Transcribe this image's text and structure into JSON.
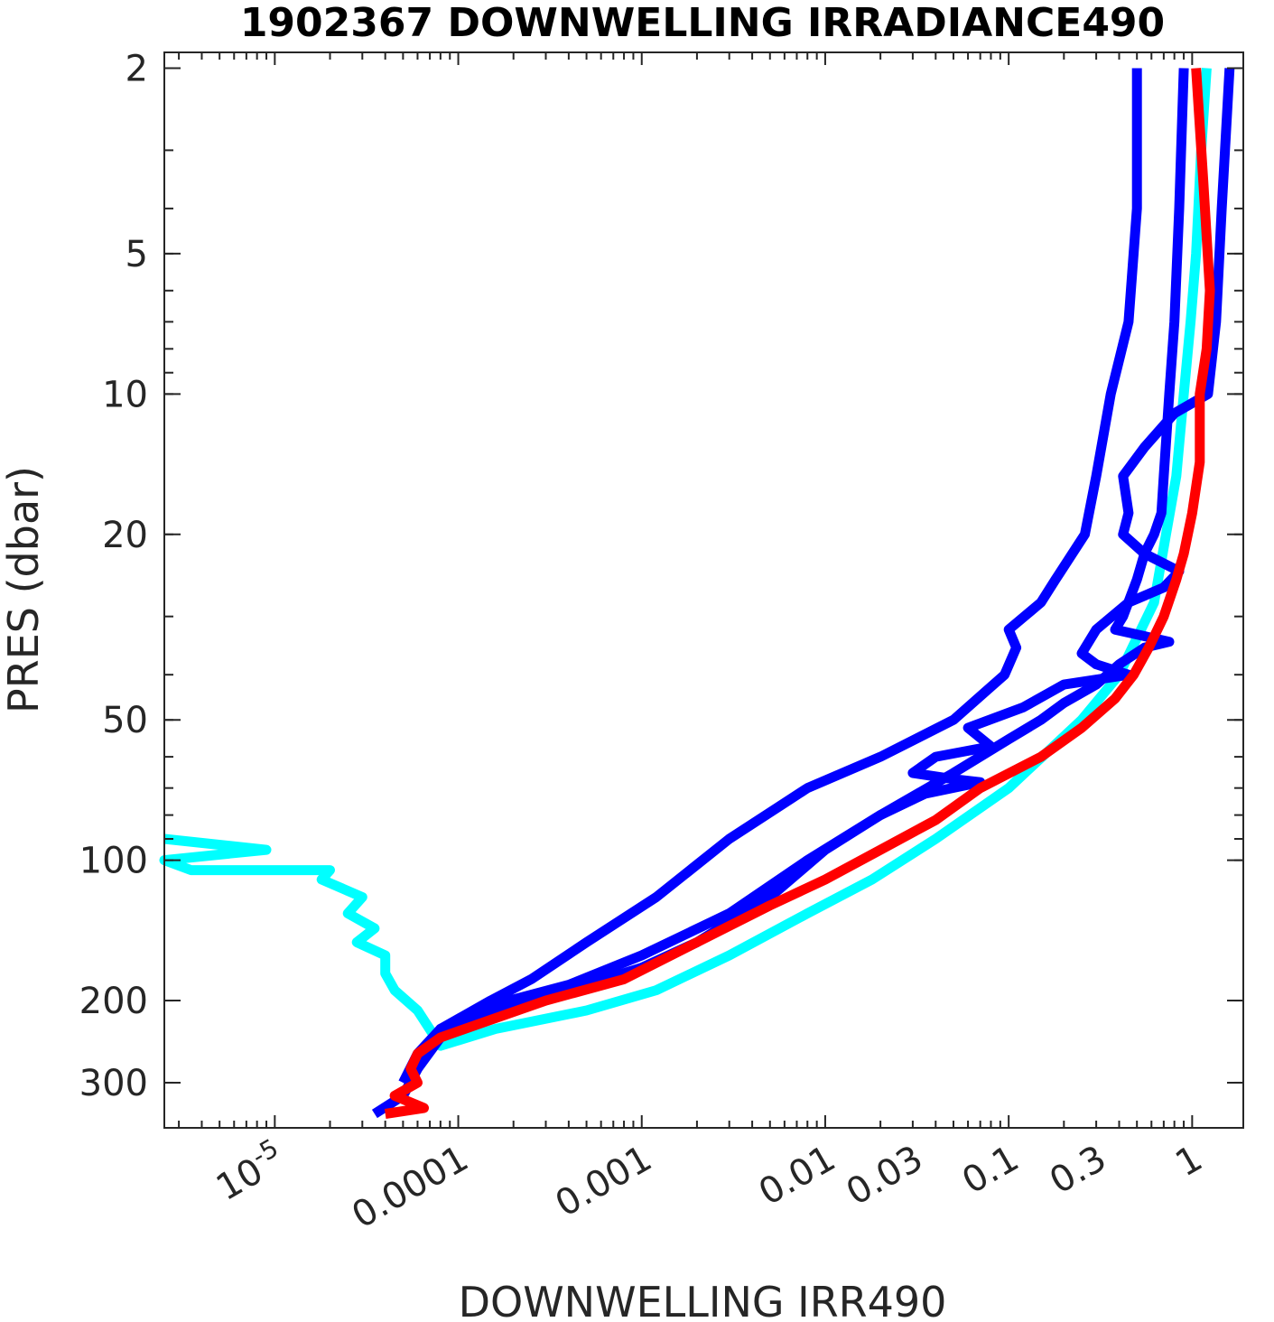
{
  "chart_data": {
    "type": "line",
    "title": "1902367  DOWNWELLING IRRADIANCE490",
    "xlabel": "DOWNWELLING IRR490",
    "ylabel": "PRES (dbar)",
    "x_scale": "log",
    "y_scale": "log",
    "y_reversed": true,
    "xlim": [
      2.5e-06,
      1.9
    ],
    "ylim": [
      1.85,
      375
    ],
    "grid": false,
    "x_ticks": [
      {
        "value": 1e-05,
        "label": "10",
        "sup": "-5"
      },
      {
        "value": 0.0001,
        "label": "0.0001"
      },
      {
        "value": 0.001,
        "label": "0.001"
      },
      {
        "value": 0.01,
        "label": "0.01"
      },
      {
        "value": 0.03,
        "label": "0.03"
      },
      {
        "value": 0.1,
        "label": "0.1"
      },
      {
        "value": 0.3,
        "label": "0.3"
      },
      {
        "value": 1,
        "label": "1"
      }
    ],
    "y_ticks": [
      {
        "value": 2,
        "label": "2"
      },
      {
        "value": 5,
        "label": "5"
      },
      {
        "value": 10,
        "label": "10"
      },
      {
        "value": 20,
        "label": "20"
      },
      {
        "value": 50,
        "label": "50"
      },
      {
        "value": 100,
        "label": "100"
      },
      {
        "value": 200,
        "label": "200"
      },
      {
        "value": 300,
        "label": "300"
      }
    ],
    "series": [
      {
        "color": "#00ffff",
        "points": [
          [
            1.2,
            2
          ],
          [
            1.12,
            3
          ],
          [
            1.05,
            5
          ],
          [
            0.98,
            7
          ],
          [
            0.9,
            10
          ],
          [
            0.82,
            15
          ],
          [
            0.72,
            20
          ],
          [
            0.62,
            28
          ],
          [
            0.4,
            40
          ],
          [
            0.25,
            50
          ],
          [
            0.1,
            70
          ],
          [
            0.04,
            90
          ],
          [
            0.018,
            110
          ],
          [
            0.008,
            130
          ],
          [
            0.003,
            160
          ],
          [
            0.0012,
            190
          ],
          [
            0.0005,
            210
          ],
          [
            0.00016,
            230
          ],
          [
            8e-05,
            250
          ],
          [
            6e-05,
            210
          ],
          [
            4.5e-05,
            190
          ],
          [
            4e-05,
            175
          ],
          [
            4e-05,
            160
          ],
          [
            2.8e-05,
            150
          ],
          [
            3.5e-05,
            140
          ],
          [
            2.5e-05,
            130
          ],
          [
            3e-05,
            120
          ],
          [
            1.8e-05,
            110
          ],
          [
            2e-05,
            105
          ],
          [
            3.5e-06,
            105
          ],
          [
            2.5e-06,
            100
          ],
          [
            9e-06,
            95
          ],
          [
            2.5e-06,
            90
          ]
        ]
      },
      {
        "color": "#0000ff",
        "points": [
          [
            0.5,
            2
          ],
          [
            0.5,
            4
          ],
          [
            0.45,
            7
          ],
          [
            0.36,
            10
          ],
          [
            0.3,
            15
          ],
          [
            0.26,
            20
          ],
          [
            0.18,
            25
          ],
          [
            0.15,
            28
          ],
          [
            0.1,
            32
          ],
          [
            0.11,
            35
          ],
          [
            0.095,
            40
          ],
          [
            0.05,
            50
          ],
          [
            0.02,
            60
          ],
          [
            0.008,
            70
          ],
          [
            0.003,
            90
          ],
          [
            0.0012,
            120
          ],
          [
            0.0005,
            150
          ],
          [
            0.00025,
            180
          ],
          [
            0.00015,
            200
          ],
          [
            8e-05,
            230
          ],
          [
            6e-05,
            280
          ],
          [
            5e-05,
            320
          ],
          [
            3.5e-05,
            350
          ]
        ]
      },
      {
        "color": "#0000ff",
        "points": [
          [
            1.6,
            2
          ],
          [
            1.45,
            4
          ],
          [
            1.35,
            7
          ],
          [
            1.22,
            10
          ],
          [
            0.8,
            11
          ],
          [
            0.55,
            13
          ],
          [
            0.42,
            15
          ],
          [
            0.45,
            18
          ],
          [
            0.42,
            20
          ],
          [
            0.55,
            22
          ],
          [
            0.85,
            24
          ],
          [
            0.7,
            26
          ],
          [
            0.45,
            28
          ],
          [
            0.3,
            32
          ],
          [
            0.25,
            36
          ],
          [
            0.3,
            38
          ],
          [
            0.45,
            40
          ],
          [
            0.2,
            42
          ],
          [
            0.12,
            47
          ],
          [
            0.06,
            52
          ],
          [
            0.08,
            57
          ],
          [
            0.04,
            60
          ],
          [
            0.03,
            65
          ],
          [
            0.05,
            67
          ],
          [
            0.07,
            68
          ],
          [
            0.035,
            72
          ],
          [
            0.02,
            80
          ],
          [
            0.01,
            95
          ],
          [
            0.005,
            120
          ],
          [
            0.002,
            150
          ],
          [
            0.001,
            170
          ],
          [
            0.0004,
            190
          ],
          [
            0.00015,
            210
          ],
          [
            8e-05,
            240
          ],
          [
            6e-05,
            280
          ],
          [
            5e-05,
            320
          ]
        ]
      },
      {
        "color": "#0000ff",
        "points": [
          [
            0.9,
            2
          ],
          [
            0.85,
            4
          ],
          [
            0.8,
            7
          ],
          [
            0.75,
            10
          ],
          [
            0.7,
            15
          ],
          [
            0.68,
            18
          ],
          [
            0.62,
            20
          ],
          [
            0.55,
            22
          ],
          [
            0.5,
            25
          ],
          [
            0.42,
            30
          ],
          [
            0.38,
            32
          ],
          [
            0.75,
            34
          ],
          [
            0.55,
            35
          ],
          [
            0.4,
            38
          ],
          [
            0.3,
            42
          ],
          [
            0.2,
            46
          ],
          [
            0.15,
            50
          ],
          [
            0.1,
            55
          ],
          [
            0.05,
            65
          ],
          [
            0.02,
            80
          ],
          [
            0.008,
            100
          ],
          [
            0.003,
            130
          ],
          [
            0.001,
            160
          ],
          [
            0.0004,
            185
          ],
          [
            0.00015,
            205
          ],
          [
            8e-05,
            230
          ],
          [
            6e-05,
            260
          ],
          [
            5e-05,
            300
          ]
        ]
      },
      {
        "color": "#ff0000",
        "points": [
          [
            1.05,
            2
          ],
          [
            1.15,
            3.5
          ],
          [
            1.25,
            6
          ],
          [
            1.2,
            8
          ],
          [
            1.1,
            10
          ],
          [
            1.1,
            14
          ],
          [
            1.0,
            18
          ],
          [
            0.9,
            22
          ],
          [
            0.82,
            25
          ],
          [
            0.7,
            30
          ],
          [
            0.58,
            35
          ],
          [
            0.48,
            40
          ],
          [
            0.38,
            45
          ],
          [
            0.25,
            52
          ],
          [
            0.15,
            60
          ],
          [
            0.07,
            70
          ],
          [
            0.04,
            82
          ],
          [
            0.02,
            95
          ],
          [
            0.01,
            110
          ],
          [
            0.005,
            125
          ],
          [
            0.002,
            150
          ],
          [
            0.0008,
            180
          ],
          [
            0.0003,
            200
          ],
          [
            0.00015,
            220
          ],
          [
            8e-05,
            240
          ],
          [
            6e-05,
            260
          ],
          [
            5.5e-05,
            280
          ],
          [
            6e-05,
            300
          ],
          [
            4.5e-05,
            320
          ],
          [
            6.5e-05,
            340
          ],
          [
            4e-05,
            350
          ]
        ]
      }
    ]
  }
}
